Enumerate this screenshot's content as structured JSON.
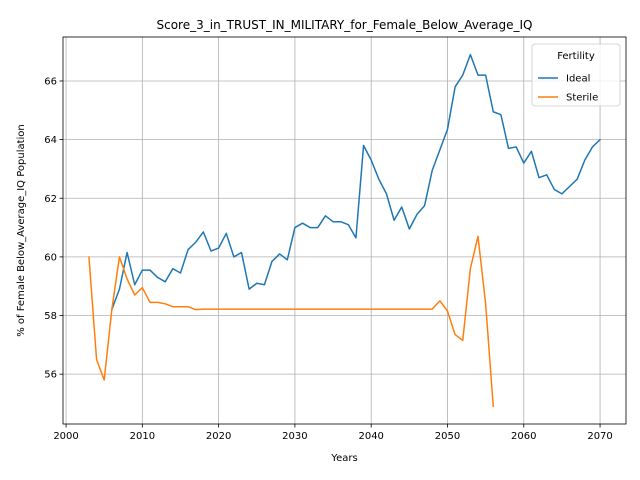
{
  "chart_data": {
    "type": "line",
    "title": "Score_3_in_TRUST_IN_MILITARY_for_Female_Below_Average_IQ",
    "xlabel": "Years",
    "ylabel": "% of Female Below_Average_IQ Population",
    "xlim": [
      1999.6,
      2073.4
    ],
    "ylim": [
      54.3,
      67.5
    ],
    "xticks": [
      2000,
      2010,
      2020,
      2030,
      2040,
      2050,
      2060,
      2070
    ],
    "yticks": [
      56,
      58,
      60,
      62,
      64,
      66
    ],
    "grid": true,
    "legend": {
      "title": "Fertility",
      "placement": "top-right"
    },
    "series": [
      {
        "name": "Ideal",
        "color": "#1f77b4",
        "x": [
          2006,
          2007,
          2008,
          2009,
          2010,
          2011,
          2012,
          2013,
          2014,
          2015,
          2016,
          2017,
          2018,
          2019,
          2020,
          2021,
          2022,
          2023,
          2024,
          2025,
          2026,
          2027,
          2028,
          2029,
          2030,
          2031,
          2032,
          2033,
          2034,
          2035,
          2036,
          2037,
          2038,
          2039,
          2040,
          2041,
          2042,
          2043,
          2044,
          2045,
          2046,
          2047,
          2048,
          2049,
          2050,
          2051,
          2052,
          2053,
          2054,
          2055,
          2056,
          2057,
          2058,
          2059,
          2060,
          2061,
          2062,
          2063,
          2064,
          2065,
          2066,
          2067,
          2068,
          2069,
          2070
        ],
        "values": [
          58.2,
          58.9,
          60.15,
          59.05,
          59.55,
          59.55,
          59.3,
          59.15,
          59.6,
          59.45,
          60.25,
          60.5,
          60.85,
          60.2,
          60.3,
          60.8,
          60.0,
          60.15,
          58.9,
          59.1,
          59.05,
          59.85,
          60.1,
          59.9,
          61.0,
          61.15,
          61.0,
          61.0,
          61.4,
          61.2,
          61.2,
          61.1,
          60.65,
          63.8,
          63.3,
          62.65,
          62.15,
          61.25,
          61.7,
          60.95,
          61.45,
          61.75,
          62.95,
          63.65,
          64.35,
          65.8,
          66.2,
          66.9,
          66.2,
          66.2,
          64.95,
          64.85,
          63.7,
          63.75,
          63.2,
          63.6,
          62.7,
          62.8,
          62.3,
          62.15,
          62.4,
          62.65,
          63.3,
          63.75,
          64.0
        ]
      },
      {
        "name": "Sterile",
        "color": "#ff7f0e",
        "x": [
          2003,
          2004,
          2005,
          2006,
          2007,
          2008,
          2009,
          2010,
          2011,
          2012,
          2013,
          2014,
          2015,
          2016,
          2017,
          2018,
          2019,
          2020,
          2021,
          2022,
          2023,
          2024,
          2025,
          2026,
          2027,
          2028,
          2029,
          2030,
          2031,
          2032,
          2033,
          2034,
          2035,
          2036,
          2037,
          2038,
          2039,
          2040,
          2041,
          2042,
          2043,
          2044,
          2045,
          2046,
          2047,
          2048,
          2049,
          2050,
          2051,
          2052,
          2053,
          2054,
          2055,
          2056
        ],
        "values": [
          60.0,
          56.5,
          55.8,
          58.2,
          60.0,
          59.25,
          58.7,
          58.95,
          58.45,
          58.45,
          58.4,
          58.3,
          58.3,
          58.3,
          58.2,
          58.22,
          58.22,
          58.22,
          58.22,
          58.22,
          58.22,
          58.22,
          58.22,
          58.22,
          58.22,
          58.22,
          58.22,
          58.22,
          58.22,
          58.22,
          58.22,
          58.22,
          58.22,
          58.22,
          58.22,
          58.22,
          58.22,
          58.22,
          58.22,
          58.22,
          58.22,
          58.22,
          58.22,
          58.22,
          58.22,
          58.22,
          58.5,
          58.15,
          57.35,
          57.15,
          59.6,
          60.7,
          58.4,
          54.9
        ]
      }
    ]
  }
}
